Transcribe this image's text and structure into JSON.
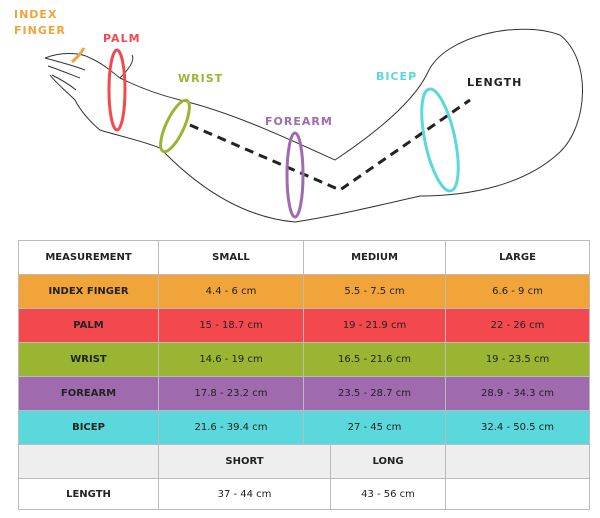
{
  "labels": [
    {
      "lines": [
        "INDEX",
        "FINGER"
      ]
    },
    {
      "lines": [
        "PALM"
      ]
    },
    {
      "lines": [
        "WRIST"
      ]
    },
    {
      "lines": [
        "FOREARM"
      ]
    },
    {
      "lines": [
        "BICEP"
      ]
    },
    {
      "lines": [
        "LENGTH"
      ]
    }
  ],
  "table": {
    "header": [
      "MEASUREMENT",
      "SMALL",
      "MEDIUM",
      "LARGE"
    ],
    "rows": [
      [
        "INDEX FINGER",
        "4.4 - 6 cm",
        "5.5 - 7.5 cm",
        "6.6 - 9 cm"
      ],
      [
        "PALM",
        "15 - 18.7 cm",
        "19 - 21.9 cm",
        "22 - 26 cm"
      ],
      [
        "WRIST",
        "14.6 - 19 cm",
        "16.5 - 21.6 cm",
        "19 - 23.5 cm"
      ],
      [
        "FOREARM",
        "17.8 - 23.2 cm",
        "23.5 - 28.7 cm",
        "28.9 - 34.3 cm"
      ],
      [
        "BICEP",
        "21.6 - 39.4 cm",
        "27 - 45 cm",
        "32.4 - 50.5 cm"
      ]
    ],
    "length_header": [
      "SHORT",
      "LONG"
    ],
    "length_row": [
      "LENGTH",
      "37 - 44 cm",
      "43 - 56 cm"
    ]
  }
}
